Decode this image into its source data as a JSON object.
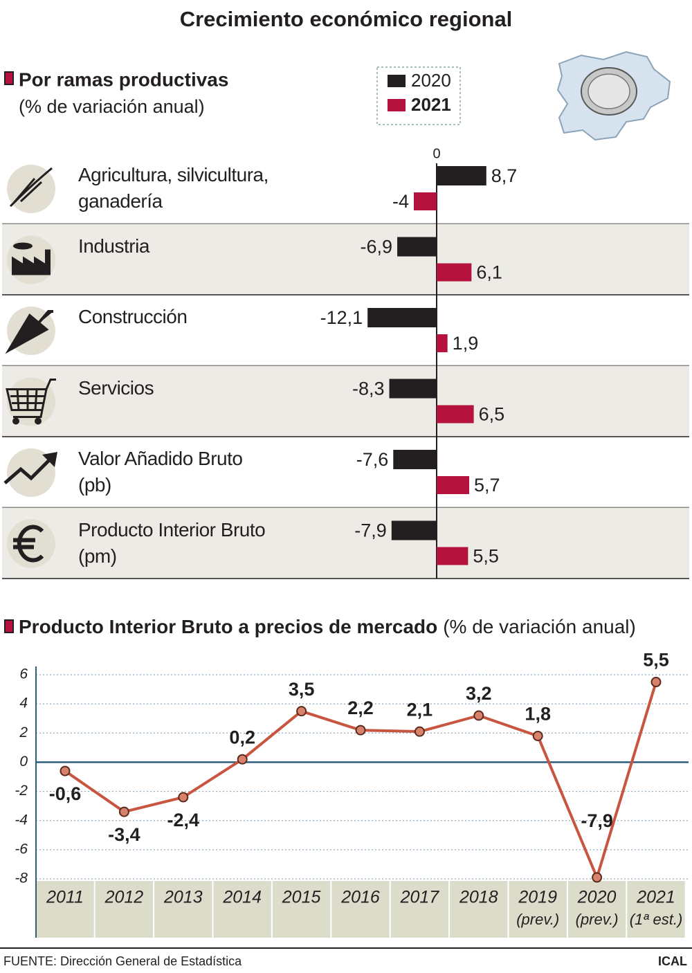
{
  "title": "Crecimiento económico regional",
  "chart_data": [
    {
      "type": "hbar",
      "title": "Por ramas productivas",
      "subtitle": "(% de variación anual)",
      "categories": [
        "Agricultura, silvicultura,\nganadería",
        "Industria",
        "Construcción",
        "Servicios",
        "Valor Añadido Bruto\n(pb)",
        "Producto Interior Bruto\n(pm)"
      ],
      "series": [
        {
          "name": "2020",
          "color": "#231f20",
          "values": [
            8.7,
            -6.9,
            -12.1,
            -8.3,
            -7.6,
            -7.9
          ],
          "value_labels": [
            "8,7",
            "-6,9",
            "-12,1",
            "-8,3",
            "-7,6",
            "-7,9"
          ]
        },
        {
          "name": "2021",
          "color": "#b5123e",
          "values": [
            -4,
            6.1,
            1.9,
            6.5,
            5.7,
            5.5
          ],
          "value_labels": [
            "-4",
            "6,1",
            "1,9",
            "6,5",
            "5,7",
            "5,5"
          ]
        }
      ],
      "xlim": [
        -16,
        16
      ],
      "xticks": [
        0
      ]
    },
    {
      "type": "line",
      "title": "Producto Interior Bruto a precios de mercado",
      "subtitle": "(% de variación anual)",
      "categories": [
        "2011",
        "2012",
        "2013",
        "2014",
        "2015",
        "2016",
        "2017",
        "2018",
        "2019",
        "2020",
        "2021"
      ],
      "category_notes": [
        null,
        null,
        null,
        null,
        null,
        null,
        null,
        null,
        "(prev.)",
        "(prev.)",
        "(1ª est.)"
      ],
      "values": [
        -0.6,
        -3.4,
        -2.4,
        0.2,
        3.5,
        2.2,
        2.1,
        3.2,
        1.8,
        -7.9,
        5.5
      ],
      "value_labels": [
        "-0,6",
        "-3,4",
        "-2,4",
        "0,2",
        "3,5",
        "2,2",
        "2,1",
        "3,2",
        "1,8",
        "-7,9",
        "5,5"
      ],
      "color": "#c8553f",
      "marker_color": "#d9826b",
      "ylim": [
        -8,
        6
      ],
      "yticks": [
        -8,
        -6,
        -4,
        -2,
        0,
        2,
        4,
        6
      ],
      "grid": true
    }
  ],
  "source": "FUENTE: Dirección General de Estadística",
  "credit": "ICAL"
}
